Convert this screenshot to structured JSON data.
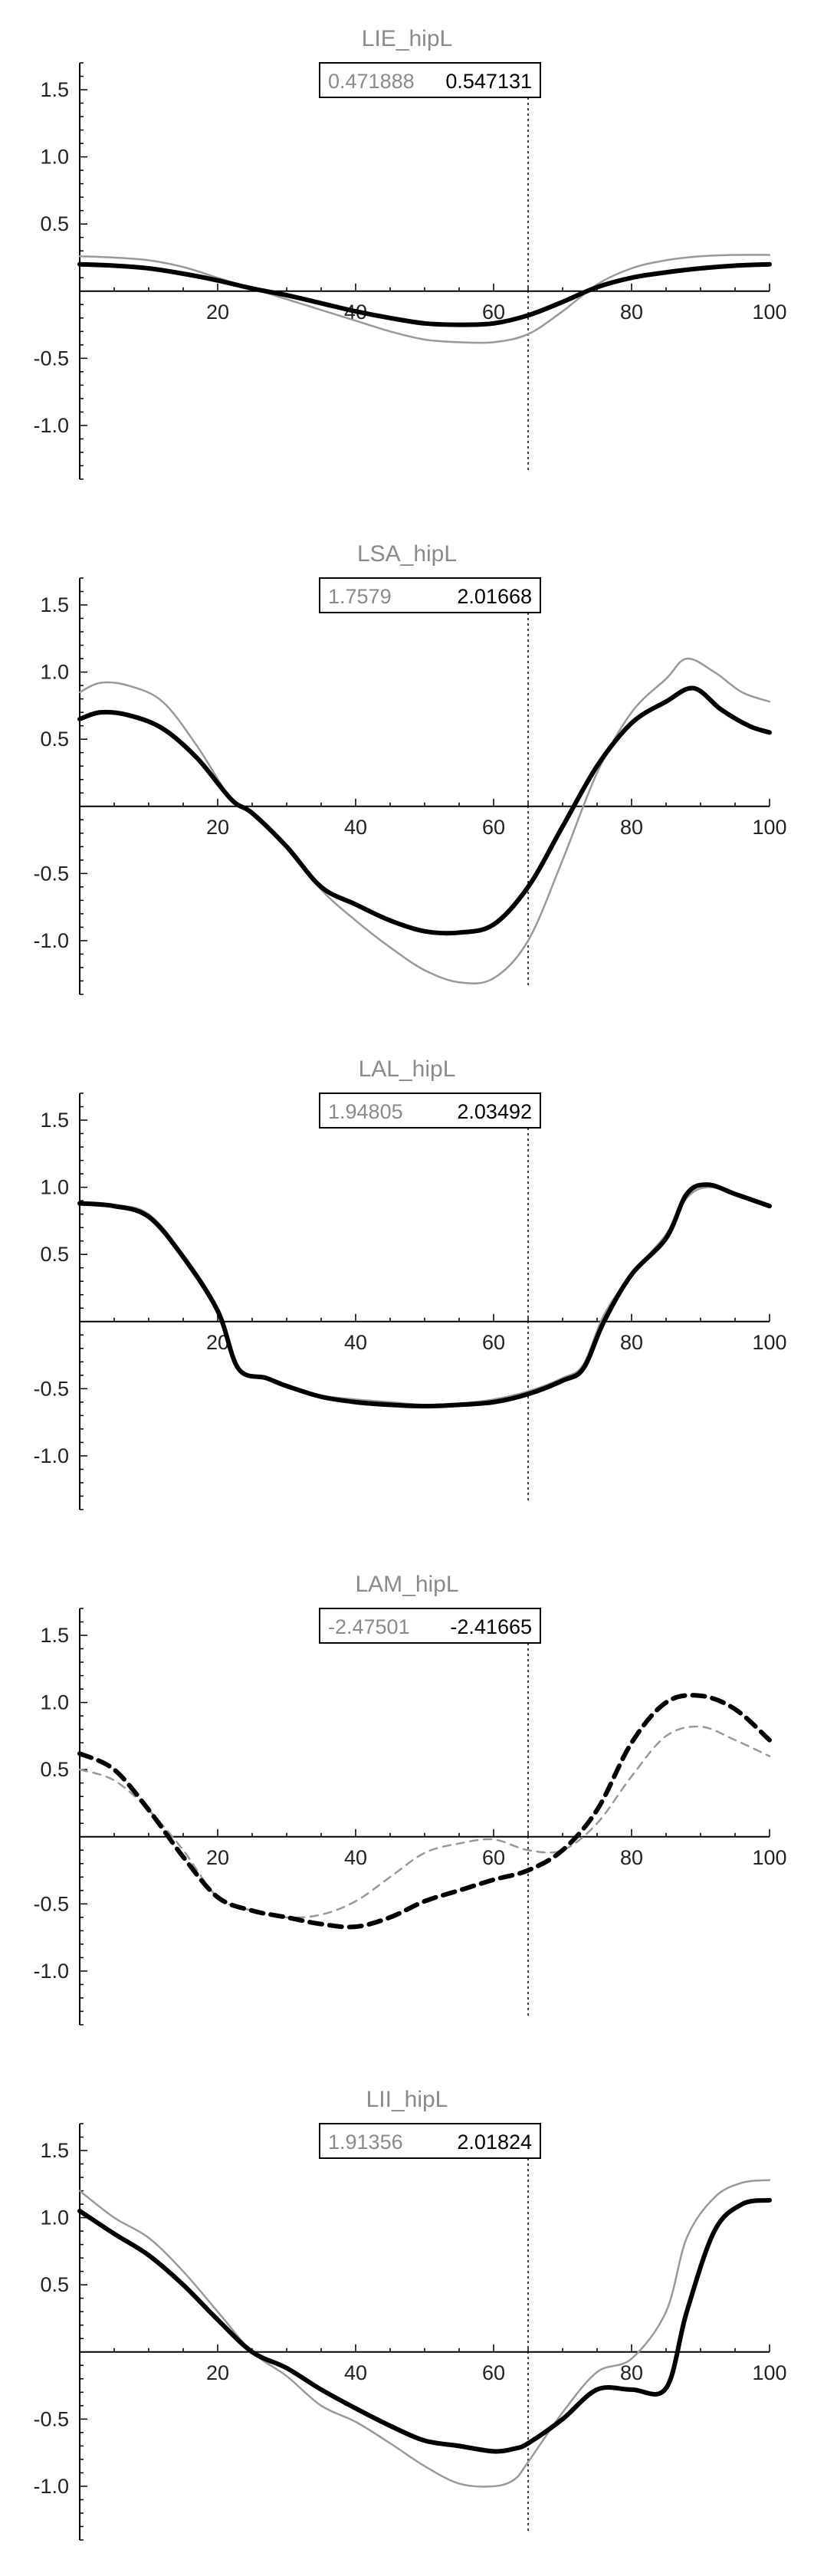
{
  "chart_data": [
    {
      "type": "line",
      "title": "LIE_hipL",
      "box_values": [
        "0.471888",
        "0.547131"
      ],
      "xlim": [
        0,
        100
      ],
      "ylim": [
        -1.4,
        1.7
      ],
      "xticks": [
        20,
        40,
        60,
        80,
        100
      ],
      "yticks": [
        1.5,
        1.0,
        0.5,
        -0.5,
        -1.0
      ],
      "ytick_labels": [
        "1.5",
        "1.0",
        "0.5",
        "-0.5",
        "-1.0"
      ],
      "xtick_labels": [
        "20",
        "40",
        "60",
        "80",
        "100"
      ],
      "vline": 65,
      "series": [
        {
          "color": "#999999",
          "style": "solid",
          "x": [
            0,
            5,
            10,
            15,
            20,
            25,
            30,
            35,
            40,
            45,
            50,
            55,
            60,
            65,
            70,
            75,
            80,
            85,
            90,
            95,
            100
          ],
          "y": [
            0.26,
            0.25,
            0.23,
            0.18,
            0.1,
            0.02,
            -0.06,
            -0.14,
            -0.22,
            -0.3,
            -0.36,
            -0.38,
            -0.38,
            -0.32,
            -0.15,
            0.05,
            0.17,
            0.23,
            0.26,
            0.27,
            0.27
          ]
        },
        {
          "color": "#000000",
          "style": "solid",
          "x": [
            0,
            5,
            10,
            15,
            20,
            25,
            30,
            35,
            40,
            45,
            50,
            55,
            60,
            65,
            70,
            75,
            80,
            85,
            90,
            95,
            100
          ],
          "y": [
            0.2,
            0.19,
            0.17,
            0.13,
            0.08,
            0.02,
            -0.03,
            -0.09,
            -0.15,
            -0.2,
            -0.24,
            -0.25,
            -0.24,
            -0.18,
            -0.08,
            0.03,
            0.1,
            0.14,
            0.17,
            0.19,
            0.2
          ]
        }
      ]
    },
    {
      "type": "line",
      "title": "LSA_hipL",
      "box_values": [
        "1.7579",
        "2.01668"
      ],
      "xlim": [
        0,
        100
      ],
      "ylim": [
        -1.4,
        1.7
      ],
      "xticks": [
        20,
        40,
        60,
        80,
        100
      ],
      "yticks": [
        1.5,
        1.0,
        0.5,
        -0.5,
        -1.0
      ],
      "ytick_labels": [
        "1.5",
        "1.0",
        "0.5",
        "-0.5",
        "-1.0"
      ],
      "xtick_labels": [
        "20",
        "40",
        "60",
        "80",
        "100"
      ],
      "vline": 65,
      "series": [
        {
          "color": "#999999",
          "style": "solid",
          "x": [
            0,
            3,
            7,
            12,
            17,
            22,
            25,
            30,
            35,
            40,
            45,
            50,
            55,
            60,
            65,
            70,
            75,
            80,
            85,
            88,
            92,
            96,
            100
          ],
          "y": [
            0.85,
            0.92,
            0.9,
            0.78,
            0.45,
            0.05,
            -0.05,
            -0.3,
            -0.62,
            -0.85,
            -1.05,
            -1.22,
            -1.31,
            -1.28,
            -1.0,
            -0.4,
            0.25,
            0.7,
            0.95,
            1.1,
            1.0,
            0.85,
            0.78
          ]
        },
        {
          "color": "#000000",
          "style": "solid",
          "x": [
            0,
            3,
            7,
            12,
            17,
            22,
            25,
            30,
            35,
            40,
            45,
            50,
            55,
            60,
            65,
            70,
            75,
            80,
            85,
            89,
            93,
            97,
            100
          ],
          "y": [
            0.65,
            0.7,
            0.68,
            0.58,
            0.36,
            0.05,
            -0.05,
            -0.3,
            -0.6,
            -0.73,
            -0.85,
            -0.93,
            -0.94,
            -0.88,
            -0.6,
            -0.15,
            0.3,
            0.62,
            0.78,
            0.88,
            0.72,
            0.6,
            0.55
          ]
        }
      ]
    },
    {
      "type": "line",
      "title": "LAL_hipL",
      "box_values": [
        "1.94805",
        "2.03492"
      ],
      "xlim": [
        0,
        100
      ],
      "ylim": [
        -1.4,
        1.7
      ],
      "xticks": [
        20,
        40,
        60,
        80,
        100
      ],
      "yticks": [
        1.5,
        1.0,
        0.5,
        -0.5,
        -1.0
      ],
      "ytick_labels": [
        "1.5",
        "1.0",
        "0.5",
        "-0.5",
        "-1.0"
      ],
      "xtick_labels": [
        "20",
        "40",
        "60",
        "80",
        "100"
      ],
      "vline": 65,
      "series": [
        {
          "color": "#999999",
          "style": "solid",
          "x": [
            0,
            5,
            10,
            15,
            20,
            23,
            27,
            30,
            35,
            40,
            45,
            50,
            55,
            60,
            65,
            70,
            73,
            76,
            80,
            85,
            88,
            91,
            95,
            100
          ],
          "y": [
            0.88,
            0.87,
            0.8,
            0.5,
            0.1,
            -0.35,
            -0.42,
            -0.47,
            -0.55,
            -0.58,
            -0.6,
            -0.62,
            -0.61,
            -0.58,
            -0.52,
            -0.42,
            -0.32,
            0.05,
            0.35,
            0.65,
            0.92,
            1.0,
            0.95,
            0.86
          ]
        },
        {
          "color": "#000000",
          "style": "solid",
          "x": [
            0,
            5,
            10,
            15,
            20,
            23,
            27,
            30,
            35,
            40,
            45,
            50,
            55,
            60,
            65,
            70,
            73,
            76,
            80,
            85,
            88,
            91,
            95,
            100
          ],
          "y": [
            0.88,
            0.86,
            0.78,
            0.48,
            0.08,
            -0.35,
            -0.42,
            -0.48,
            -0.56,
            -0.6,
            -0.62,
            -0.63,
            -0.62,
            -0.6,
            -0.54,
            -0.44,
            -0.35,
            0.0,
            0.35,
            0.62,
            0.95,
            1.02,
            0.95,
            0.86
          ]
        }
      ]
    },
    {
      "type": "line",
      "title": "LAM_hipL",
      "box_values": [
        "-2.47501",
        "-2.41665"
      ],
      "xlim": [
        0,
        100
      ],
      "ylim": [
        -1.4,
        1.7
      ],
      "xticks": [
        20,
        40,
        60,
        80,
        100
      ],
      "yticks": [
        1.5,
        1.0,
        0.5,
        -0.5,
        -1.0
      ],
      "ytick_labels": [
        "1.5",
        "1.0",
        "0.5",
        "-0.5",
        "-1.0"
      ],
      "xtick_labels": [
        "20",
        "40",
        "60",
        "80",
        "100"
      ],
      "vline": 65,
      "series": [
        {
          "color": "#999999",
          "style": "dashed",
          "x": [
            0,
            5,
            10,
            15,
            20,
            25,
            30,
            35,
            40,
            45,
            50,
            55,
            60,
            65,
            70,
            75,
            80,
            85,
            90,
            95,
            100
          ],
          "y": [
            0.5,
            0.42,
            0.2,
            -0.1,
            -0.45,
            -0.55,
            -0.6,
            -0.58,
            -0.48,
            -0.3,
            -0.12,
            -0.05,
            -0.02,
            -0.1,
            -0.1,
            0.1,
            0.45,
            0.75,
            0.82,
            0.72,
            0.6
          ]
        },
        {
          "color": "#000000",
          "style": "dashed",
          "x": [
            0,
            5,
            10,
            15,
            20,
            25,
            30,
            35,
            40,
            45,
            50,
            55,
            60,
            65,
            70,
            75,
            80,
            85,
            90,
            95,
            100
          ],
          "y": [
            0.62,
            0.5,
            0.2,
            -0.15,
            -0.45,
            -0.55,
            -0.6,
            -0.65,
            -0.67,
            -0.6,
            -0.48,
            -0.4,
            -0.32,
            -0.25,
            -0.1,
            0.2,
            0.7,
            1.0,
            1.05,
            0.95,
            0.72
          ]
        }
      ]
    },
    {
      "type": "line",
      "title": "LII_hipL",
      "box_values": [
        "1.91356",
        "2.01824"
      ],
      "xlim": [
        0,
        100
      ],
      "ylim": [
        -1.4,
        1.7
      ],
      "xticks": [
        20,
        40,
        60,
        80,
        100
      ],
      "yticks": [
        1.5,
        1.0,
        0.5,
        -0.5,
        -1.0
      ],
      "ytick_labels": [
        "1.5",
        "1.0",
        "0.5",
        "-0.5",
        "-1.0"
      ],
      "xtick_labels": [
        "20",
        "40",
        "60",
        "80",
        "100"
      ],
      "vline": 65,
      "series": [
        {
          "color": "#999999",
          "style": "solid",
          "x": [
            0,
            5,
            10,
            15,
            20,
            25,
            30,
            35,
            40,
            45,
            50,
            55,
            60,
            63,
            65,
            70,
            75,
            80,
            85,
            88,
            92,
            96,
            100
          ],
          "y": [
            1.2,
            1.0,
            0.85,
            0.6,
            0.3,
            0.0,
            -0.18,
            -0.4,
            -0.52,
            -0.68,
            -0.85,
            -0.98,
            -1.0,
            -0.95,
            -0.82,
            -0.45,
            -0.15,
            -0.05,
            0.3,
            0.85,
            1.15,
            1.26,
            1.28
          ]
        },
        {
          "color": "#000000",
          "style": "solid",
          "x": [
            0,
            5,
            10,
            15,
            20,
            25,
            30,
            35,
            40,
            45,
            50,
            55,
            60,
            63,
            65,
            70,
            75,
            80,
            85,
            88,
            92,
            96,
            100
          ],
          "y": [
            1.05,
            0.88,
            0.72,
            0.5,
            0.24,
            0.0,
            -0.12,
            -0.28,
            -0.42,
            -0.55,
            -0.66,
            -0.7,
            -0.74,
            -0.72,
            -0.68,
            -0.5,
            -0.28,
            -0.28,
            -0.27,
            0.3,
            0.9,
            1.1,
            1.13
          ]
        }
      ]
    }
  ]
}
